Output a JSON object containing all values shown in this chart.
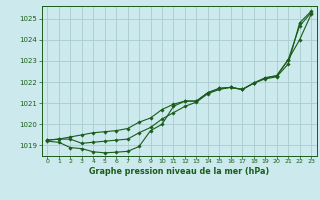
{
  "title": "Graphe pression niveau de la mer (hPa)",
  "bg_color": "#cce9ed",
  "grid_color": "#aacccc",
  "line_color": "#1a5c1a",
  "marker_color": "#1a5c1a",
  "xlim": [
    -0.5,
    23.5
  ],
  "ylim": [
    1018.5,
    1025.6
  ],
  "yticks": [
    1019,
    1020,
    1021,
    1022,
    1023,
    1024,
    1025
  ],
  "xtick_labels": [
    "0",
    "1",
    "2",
    "3",
    "4",
    "5",
    "6",
    "7",
    "8",
    "9",
    "10",
    "11",
    "12",
    "13",
    "14",
    "15",
    "16",
    "17",
    "18",
    "19",
    "20",
    "21",
    "22",
    "23"
  ],
  "series": [
    [
      1019.25,
      1019.3,
      1019.3,
      1019.1,
      1019.15,
      1019.2,
      1019.25,
      1019.3,
      1019.6,
      1019.85,
      1020.25,
      1020.55,
      1020.85,
      1021.05,
      1021.45,
      1021.65,
      1021.75,
      1021.65,
      1021.95,
      1022.15,
      1022.25,
      1022.85,
      1024.8,
      1025.35
    ],
    [
      1019.25,
      1019.3,
      1019.4,
      1019.5,
      1019.6,
      1019.65,
      1019.7,
      1019.8,
      1020.1,
      1020.3,
      1020.7,
      1020.95,
      1021.1,
      1021.1,
      1021.5,
      1021.7,
      1021.75,
      1021.65,
      1021.95,
      1022.2,
      1022.3,
      1023.05,
      1024.65,
      1025.28
    ],
    [
      1019.2,
      1019.15,
      1018.9,
      1018.85,
      1018.7,
      1018.65,
      1018.68,
      1018.72,
      1018.95,
      1019.7,
      1020.0,
      1020.85,
      1021.1,
      1021.1,
      1021.5,
      1021.7,
      1021.75,
      1021.65,
      1021.95,
      1022.2,
      1022.3,
      1023.05,
      1024.0,
      1025.2
    ]
  ]
}
